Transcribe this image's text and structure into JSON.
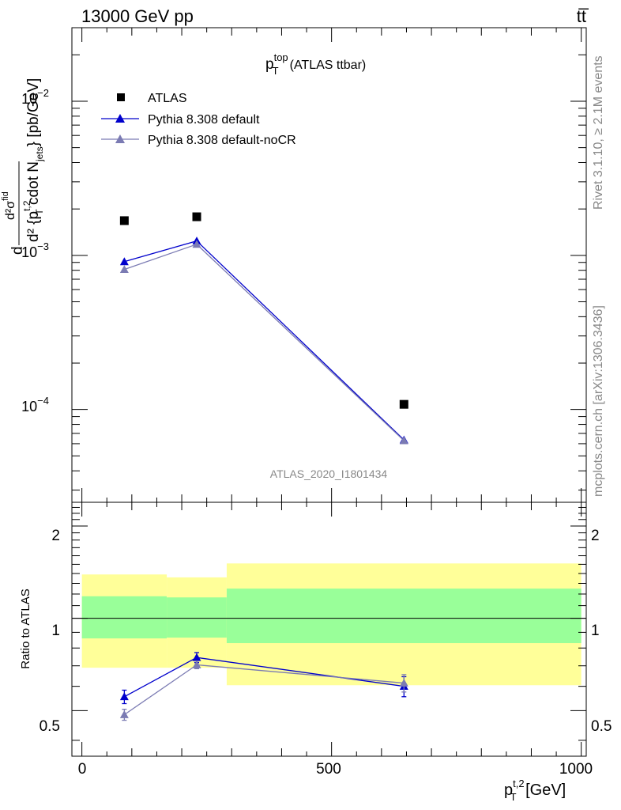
{
  "header": {
    "energy_label": "13000 GeV pp",
    "process_label": "tt̅"
  },
  "side_labels": {
    "rivet": "Rivet 3.1.10, ≥ 2.1M events",
    "mcplots": "mcplots.cern.ch [arXiv:1306.3436]"
  },
  "watermark": "ATLAS_2020_I1801434",
  "main_panel": {
    "title_main": "p",
    "title_sup": "top",
    "title_sub": "T",
    "title_rest": "(ATLAS ttbar)",
    "ylabel_parts": {
      "d": "d",
      "numerator": "d²σ",
      "numerator_sup": "fid",
      "denominator": "d² {p",
      "denominator_sup": "t,2",
      "denominator_sub": "T",
      "denominator_rest": " cdot N",
      "denominator_sub2": "jets",
      "units": "} [pb/GeV]"
    },
    "ytick_labels": [
      {
        "base": "10",
        "exp": "−2"
      },
      {
        "base": "10",
        "exp": "−3"
      },
      {
        "base": "10",
        "exp": "−4"
      }
    ]
  },
  "ratio_panel": {
    "ylabel": "Ratio to ATLAS",
    "ytick_labels": [
      "2",
      "1",
      "0.5"
    ],
    "xtick_labels": [
      "0",
      "500",
      "1000"
    ],
    "xlabel_main": "p",
    "xlabel_sup": "t,2",
    "xlabel_sub": "T",
    "xlabel_rest": " [GeV]"
  },
  "legend": [
    {
      "label": "ATLAS",
      "kind": "square",
      "color": "#000000"
    },
    {
      "label": "Pythia 8.308 default",
      "kind": "triangle",
      "color": "#0000cc"
    },
    {
      "label": "Pythia 8.308 default-noCR",
      "kind": "triangle",
      "color": "#7b7bb3"
    }
  ],
  "chart_data": {
    "type": "scatter",
    "x_unit": "GeV",
    "main": {
      "xlim": [
        -20,
        1010
      ],
      "ylim": [
        2.5e-05,
        0.03
      ],
      "yscale": "log",
      "series": [
        {
          "name": "ATLAS",
          "color": "#000000",
          "x": [
            85,
            230,
            645
          ],
          "y": [
            0.00168,
            0.00178,
            0.000108
          ]
        },
        {
          "name": "Pythia 8.308 default",
          "color": "#0000cc",
          "x": [
            85,
            230,
            645
          ],
          "y": [
            0.00091,
            0.00124,
            6.35e-05
          ]
        },
        {
          "name": "Pythia 8.308 default-noCR",
          "color": "#7b7bb3",
          "x": [
            85,
            230,
            645
          ],
          "y": [
            0.00081,
            0.00118,
            6.28e-05
          ]
        }
      ]
    },
    "ratio": {
      "xlim": [
        -20,
        1010
      ],
      "ylim": [
        0.355,
        2.39
      ],
      "yscale": "log",
      "reference": 1,
      "bands": [
        {
          "x0": 0,
          "x1": 170,
          "inner": [
            0.86,
            1.18
          ],
          "outer": [
            0.69,
            1.39
          ]
        },
        {
          "x0": 170,
          "x1": 290,
          "inner": [
            0.865,
            1.17
          ],
          "outer": [
            0.69,
            1.36
          ]
        },
        {
          "x0": 290,
          "x1": 1000,
          "inner": [
            0.83,
            1.25
          ],
          "outer": [
            0.605,
            1.51
          ]
        }
      ],
      "series": [
        {
          "name": "Pythia 8.308 default",
          "color": "#0000cc",
          "x": [
            85,
            230,
            645
          ],
          "y": [
            0.555,
            0.745,
            0.6
          ],
          "err": [
            0.028,
            0.028,
            0.045
          ]
        },
        {
          "name": "Pythia 8.308 default-noCR",
          "color": "#7b7bb3",
          "x": [
            85,
            230,
            645
          ],
          "y": [
            0.485,
            0.705,
            0.615
          ],
          "err": [
            0.02,
            0.02,
            0.04
          ]
        }
      ],
      "band_colors": {
        "inner": "#99ff99",
        "outer": "#ffff99"
      }
    }
  }
}
